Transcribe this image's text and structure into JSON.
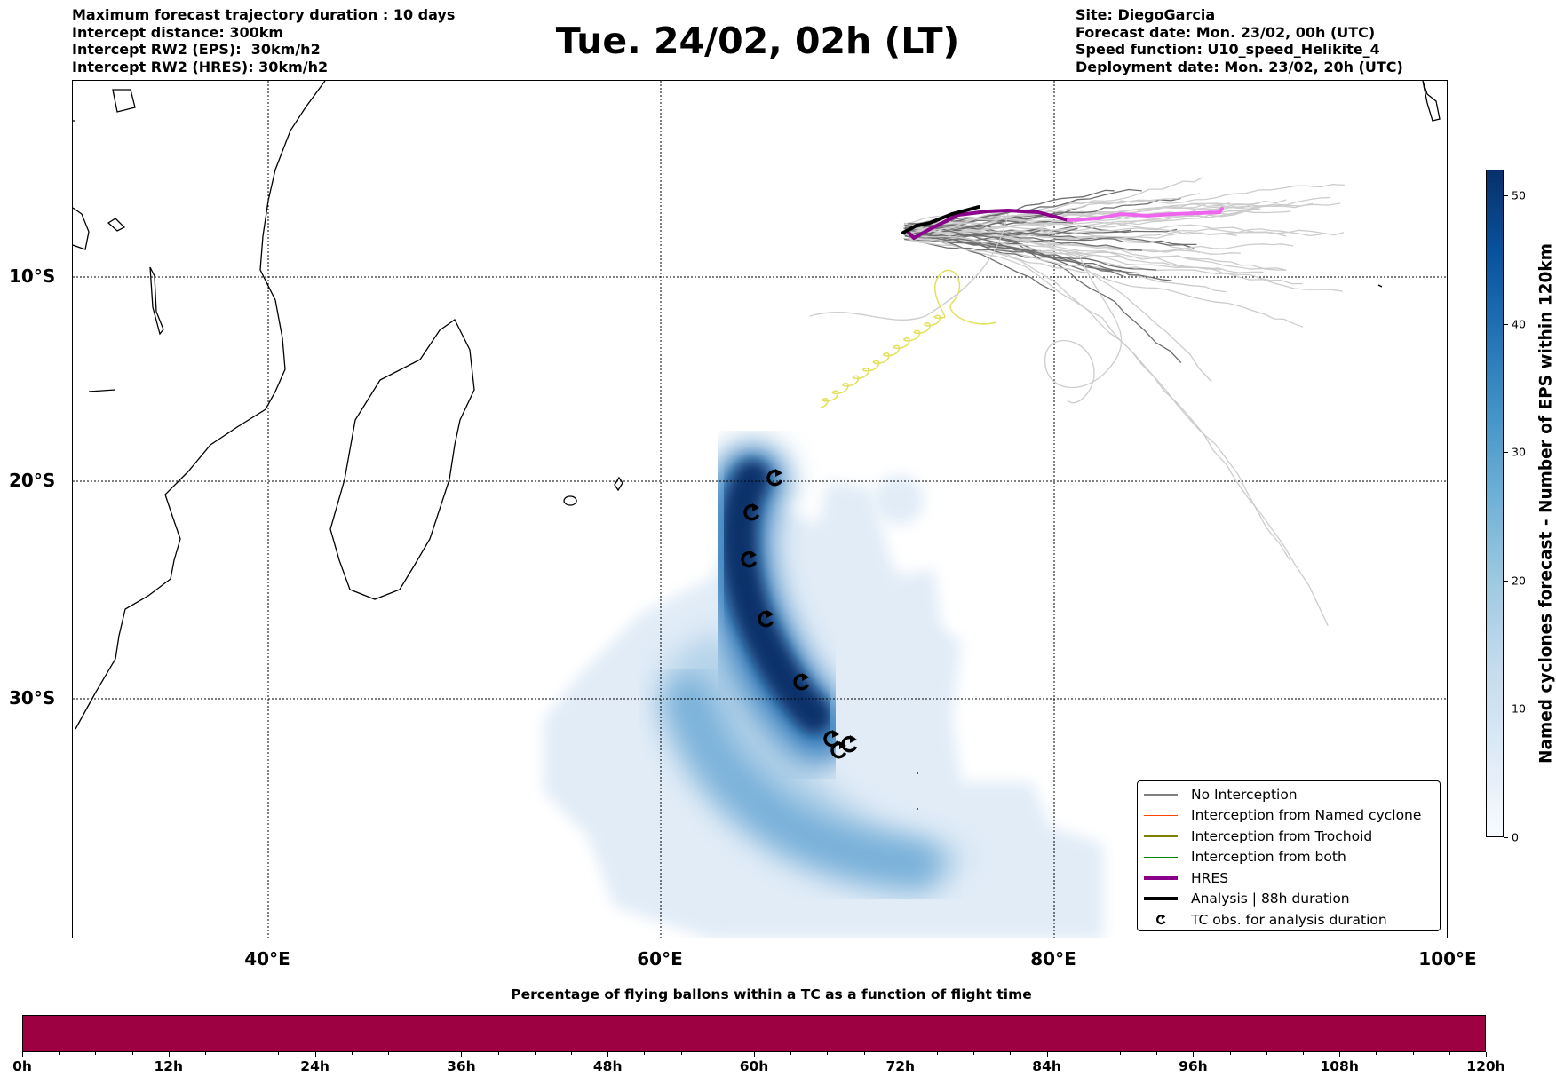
{
  "header": {
    "left": [
      "Maximum forecast trajectory duration : 10 days",
      "Intercept distance: 300km",
      "Intercept RW2 (EPS):  30km/h2",
      "Intercept RW2 (HRES): 30km/h2"
    ],
    "title": "Tue. 24/02, 02h (LT)",
    "right": [
      "Site: DiegoGarcia",
      "Forecast date: Mon. 23/02, 00h (UTC)",
      "Speed function: U10_speed_Helikite_4",
      "Deployment date: Mon. 23/02, 20h (UTC)"
    ]
  },
  "chart_data": [
    {
      "type": "map",
      "title": "Tue. 24/02, 02h (LT)",
      "lon_range": [
        30,
        100
      ],
      "lat_range": [
        -39,
        -0.5
      ],
      "lon_ticks": [
        "40°E",
        "60°E",
        "80°E",
        "100°E"
      ],
      "lat_ticks": [
        "10°S",
        "20°S",
        "30°S"
      ],
      "grid": true,
      "legend_position": "bottom-right",
      "legend": [
        {
          "label": "No Interception",
          "color": "#808080",
          "style": "thin"
        },
        {
          "label": "Interception from Named cyclone",
          "color": "#ff4500",
          "style": "thin"
        },
        {
          "label": "Interception from Trochoid",
          "color": "#808000",
          "style": "thin"
        },
        {
          "label": "Interception from both",
          "color": "#008000",
          "style": "thin"
        },
        {
          "label": "HRES",
          "color": "#8b008b",
          "style": "thick"
        },
        {
          "label": "Analysis | 88h duration",
          "color": "#000000",
          "style": "thick"
        },
        {
          "label": "TC obs. for analysis duration",
          "color": "#000000",
          "style": "marker"
        }
      ],
      "colorbar": {
        "label": "Named cyclones forecast - Number of EPS within 120km",
        "range": [
          0,
          52
        ],
        "ticks": [
          "0",
          "10",
          "20",
          "30",
          "40",
          "50"
        ]
      }
    },
    {
      "type": "bar",
      "title": "Percentage of flying ballons within a TC as a function of flight time",
      "ticks": [
        "0h",
        "12h",
        "24h",
        "36h",
        "48h",
        "60h",
        "72h",
        "84h",
        "96h",
        "108h",
        "120h"
      ],
      "range_hours": [
        0,
        120
      ],
      "fill_color": "#9e0142"
    }
  ]
}
